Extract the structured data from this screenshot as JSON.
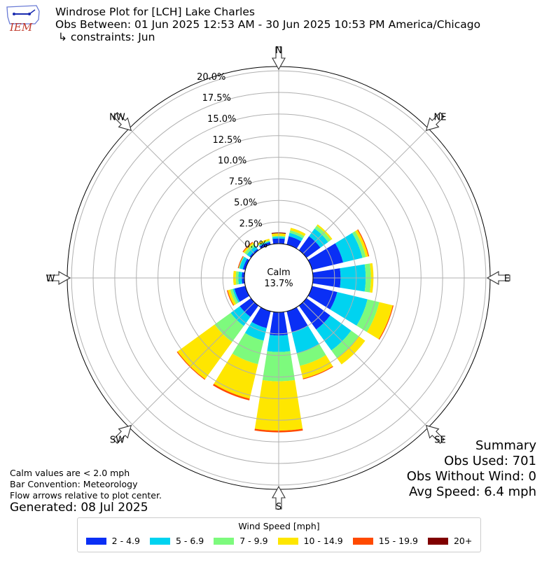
{
  "header": {
    "title": "Windrose Plot for [LCH] Lake Charles",
    "obs_between": "Obs Between: 01 Jun 2025 12:53 AM - 30 Jun 2025 10:53 PM America/Chicago",
    "constraints": "↳ constraints: Jun"
  },
  "logo": {
    "text": "IEM",
    "color": "#c0392b"
  },
  "notes": {
    "line1": "Calm values are < 2.0 mph",
    "line2": "Bar Convention: Meteorology",
    "line3": "Flow arrows relative to plot center.",
    "generated": "Generated: 08 Jul 2025"
  },
  "summary": {
    "title": "Summary",
    "obs_used": "Obs Used: 701",
    "obs_without_wind": "Obs Without Wind: 0",
    "avg_speed": "Avg Speed: 6.4 mph"
  },
  "legend": {
    "title": "Wind Speed [mph]",
    "items": [
      {
        "label": "2 - 4.9",
        "color": "#0a2ff5"
      },
      {
        "label": "5 - 6.9",
        "color": "#00d3f0"
      },
      {
        "label": "7 - 9.9",
        "color": "#7dfa7d"
      },
      {
        "label": "10 - 14.9",
        "color": "#fee600"
      },
      {
        "label": "15 - 19.9",
        "color": "#ff4a00"
      },
      {
        "label": "20+",
        "color": "#800000"
      }
    ]
  },
  "chart_data": {
    "type": "windrose",
    "calm": {
      "label": "Calm",
      "value": "13.7%"
    },
    "directions": [
      "N",
      "NNE",
      "NE",
      "ENE",
      "E",
      "ESE",
      "SE",
      "SSE",
      "S",
      "SSW",
      "SW",
      "WSW",
      "W",
      "WNW",
      "NW",
      "NNW"
    ],
    "compass_labels": [
      "N",
      "NE",
      "E",
      "SE",
      "S",
      "SW",
      "W",
      "NW"
    ],
    "radial_ticks": [
      "0.0%",
      "2.5%",
      "5.0%",
      "7.5%",
      "10.0%",
      "12.5%",
      "15.0%",
      "17.5%",
      "20.0%"
    ],
    "rmax": 20.5,
    "series": [
      {
        "name": "2 - 4.9",
        "color": "#0a2ff5",
        "values": [
          0.6,
          1.0,
          2.0,
          3.7,
          3.2,
          3.0,
          3.4,
          2.5,
          2.7,
          2.0,
          1.6,
          1.3,
          0.3,
          0.3,
          0.2,
          0.3
        ]
      },
      {
        "name": "5 - 6.9",
        "color": "#00d3f0",
        "values": [
          0.2,
          0.4,
          1.1,
          2.3,
          2.9,
          3.6,
          3.0,
          2.5,
          1.9,
          1.5,
          1.3,
          0.2,
          0.4,
          0.4,
          0.4,
          0.1
        ]
      },
      {
        "name": "7 - 9.9",
        "color": "#7dfa7d",
        "values": [
          0.1,
          0.3,
          0.4,
          0.4,
          0.6,
          1.4,
          1.1,
          1.5,
          3.4,
          2.8,
          2.3,
          0.3,
          0.3,
          0.1,
          0.3,
          0.1
        ]
      },
      {
        "name": "10 - 14.9",
        "color": "#fee600",
        "values": [
          0.3,
          0.3,
          0.2,
          0.3,
          0.3,
          1.6,
          0.9,
          1.5,
          5.7,
          4.1,
          5.3,
          0.3,
          0.3,
          0.0,
          0.2,
          0.2
        ]
      },
      {
        "name": "15 - 19.9",
        "color": "#ff4a00",
        "values": [
          0.0,
          0.0,
          0.0,
          0.1,
          0.0,
          0.1,
          0.0,
          0.1,
          0.2,
          0.2,
          0.1,
          0.1,
          0.0,
          0.1,
          0.1,
          0.0
        ]
      },
      {
        "name": "20+",
        "color": "#800000",
        "values": [
          0.1,
          0.0,
          0.0,
          0.0,
          0.0,
          0.0,
          0.0,
          0.0,
          0.0,
          0.0,
          0.0,
          0.0,
          0.0,
          0.0,
          0.0,
          0.0
        ]
      }
    ],
    "units": "%"
  }
}
